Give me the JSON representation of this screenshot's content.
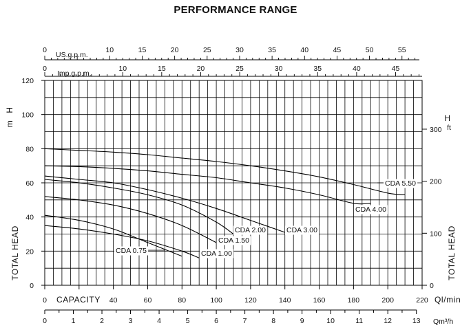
{
  "title": "PERFORMANCE RANGE",
  "chart_data": {
    "type": "line",
    "title": "PERFORMANCE RANGE",
    "x_axis": {
      "label": "CAPACITY",
      "unit": "Ql/min",
      "range": [
        0,
        220
      ],
      "ticks": [
        0,
        20,
        40,
        60,
        80,
        100,
        120,
        140,
        160,
        180,
        200,
        220
      ],
      "tick_labels": [
        "0",
        "",
        "40",
        "60",
        "80",
        "100",
        "120",
        "140",
        "160",
        "180",
        "200",
        "220"
      ]
    },
    "x_axis_m3h": {
      "unit": "Qm³/h",
      "range": [
        0,
        13.2
      ],
      "ticks": [
        0,
        1,
        2,
        3,
        4,
        5,
        6,
        7,
        8,
        9,
        10,
        11,
        12,
        13
      ]
    },
    "x_axis_usgpm": {
      "unit": "US.g.p.m.",
      "range": [
        0,
        58.1
      ],
      "ticks": [
        0,
        10,
        15,
        20,
        25,
        30,
        35,
        40,
        45,
        50,
        55
      ]
    },
    "x_axis_impgpm": {
      "unit": "Imp.g.p.m.",
      "range": [
        0,
        48.4
      ],
      "ticks": [
        0,
        10,
        15,
        20,
        25,
        30,
        35,
        40,
        45
      ]
    },
    "y_axis": {
      "label": "TOTAL HEAD",
      "unit": "H m",
      "range": [
        0,
        120
      ],
      "ticks": [
        0,
        20,
        40,
        60,
        80,
        100,
        120
      ]
    },
    "y_axis_ft": {
      "label": "TOTAL HEAD",
      "unit": "H ft",
      "range": [
        0,
        393.7
      ],
      "ticks": [
        0,
        100,
        200,
        300
      ]
    },
    "grid": true,
    "series": [
      {
        "name": "CDA 0.75",
        "label": "CDA 0.75",
        "x": [
          0,
          20,
          40,
          60,
          80
        ],
        "y": [
          41,
          38,
          33,
          25,
          17
        ]
      },
      {
        "name": "CDA 1.00",
        "label": "CDA 1.00",
        "x": [
          0,
          20,
          40,
          60,
          80,
          90
        ],
        "y": [
          35,
          33,
          30,
          26,
          20,
          16
        ]
      },
      {
        "name": "CDA 1.50",
        "label": "CDA 1.50",
        "x": [
          0,
          20,
          40,
          60,
          80,
          100
        ],
        "y": [
          52,
          50,
          47,
          42,
          35,
          25
        ]
      },
      {
        "name": "CDA 2.00",
        "label": "CDA 2.00",
        "x": [
          0,
          20,
          40,
          60,
          80,
          100,
          110
        ],
        "y": [
          62,
          60,
          57,
          53,
          47,
          37,
          30
        ]
      },
      {
        "name": "CDA 3.00",
        "label": "CDA 3.00",
        "x": [
          0,
          20,
          40,
          60,
          80,
          100,
          120,
          140
        ],
        "y": [
          64,
          62,
          60,
          56,
          51,
          45,
          38,
          31
        ]
      },
      {
        "name": "CDA 4.00",
        "label": "CDA 4.00",
        "x": [
          0,
          20,
          40,
          60,
          80,
          100,
          120,
          140,
          160,
          180,
          190
        ],
        "y": [
          70,
          69.5,
          68.5,
          67,
          65,
          63,
          60,
          57,
          53,
          48,
          48
        ]
      },
      {
        "name": "CDA 5.50",
        "label": "CDA 5.50",
        "x": [
          0,
          20,
          40,
          60,
          80,
          100,
          120,
          140,
          160,
          180,
          200,
          210
        ],
        "y": [
          80,
          79,
          78,
          76.5,
          74.5,
          72.5,
          70,
          67,
          63.5,
          59,
          54,
          53
        ]
      }
    ]
  }
}
